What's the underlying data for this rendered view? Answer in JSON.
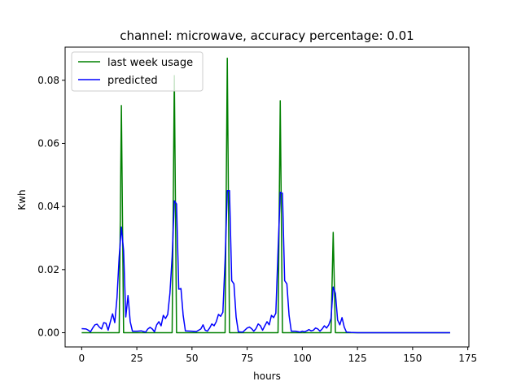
{
  "chart_data": {
    "type": "line",
    "title": "channel: microwave, accuracy percentage: 0.01",
    "xlabel": "hours",
    "ylabel": "Kwh",
    "xlim": [
      -7.5,
      175.5
    ],
    "ylim": [
      -0.0045,
      0.0905
    ],
    "xticks": [
      0,
      25,
      50,
      75,
      100,
      125,
      150,
      175
    ],
    "xtick_labels": [
      "0",
      "25",
      "50",
      "75",
      "100",
      "125",
      "150",
      "175"
    ],
    "yticks": [
      0.0,
      0.02,
      0.04,
      0.06,
      0.08
    ],
    "ytick_labels": [
      "0.00",
      "0.02",
      "0.04",
      "0.06",
      "0.08"
    ],
    "grid": false,
    "legend_position": "upper left",
    "series": [
      {
        "name": "last week usage",
        "color": "#008000",
        "x": [
          0,
          17,
          18,
          19,
          41,
          42,
          43,
          65,
          66,
          67,
          89,
          90,
          91,
          113,
          114,
          115,
          167
        ],
        "y": [
          0,
          0,
          0.072,
          0,
          0,
          0.0815,
          0,
          0,
          0.087,
          0,
          0,
          0.0735,
          0,
          0,
          0.0318,
          0,
          0
        ]
      },
      {
        "name": "predicted",
        "color": "#0000ff",
        "x": [
          0,
          2,
          3,
          4,
          5,
          6,
          7,
          8,
          9,
          10,
          11,
          12,
          13,
          14,
          15,
          16,
          17,
          18,
          19,
          20,
          21,
          22,
          23,
          25,
          27,
          29,
          30,
          31,
          32,
          33,
          34,
          35,
          36,
          37,
          38,
          39,
          40,
          41,
          42,
          43,
          44,
          45,
          46,
          47,
          50,
          52,
          54,
          55,
          56,
          57,
          58,
          59,
          60,
          61,
          62,
          63,
          64,
          65,
          66,
          67,
          68,
          69,
          70,
          71,
          73,
          75,
          76,
          77,
          78,
          79,
          80,
          81,
          82,
          83,
          84,
          85,
          86,
          87,
          88,
          89,
          90,
          91,
          92,
          93,
          94,
          95,
          97,
          99,
          100,
          101,
          102,
          103,
          104,
          105,
          106,
          107,
          108,
          109,
          110,
          111,
          112,
          113,
          114,
          115,
          116,
          117,
          118,
          119,
          120,
          122,
          125,
          167
        ],
        "y": [
          0.0013,
          0.0012,
          0.0008,
          0.0003,
          0.0015,
          0.0025,
          0.0027,
          0.0018,
          0.0012,
          0.0032,
          0.003,
          0.0008,
          0.0035,
          0.006,
          0.0032,
          0.011,
          0.024,
          0.0335,
          0.026,
          0.005,
          0.0118,
          0.0035,
          0.0005,
          0.0005,
          0.0006,
          0.0002,
          0.0012,
          0.0017,
          0.0012,
          0.0003,
          0.0025,
          0.0035,
          0.0022,
          0.0055,
          0.0045,
          0.0058,
          0.0125,
          0.024,
          0.0418,
          0.0408,
          0.0138,
          0.014,
          0.0055,
          0.0006,
          0.0005,
          0.0004,
          0.0012,
          0.0025,
          0.0008,
          0.0005,
          0.0015,
          0.0028,
          0.0022,
          0.0035,
          0.0058,
          0.0052,
          0.0065,
          0.023,
          0.045,
          0.045,
          0.0165,
          0.0155,
          0.005,
          0.0003,
          0.0002,
          0.0015,
          0.0018,
          0.0013,
          0.0005,
          0.0013,
          0.0028,
          0.0022,
          0.0008,
          0.0022,
          0.0035,
          0.0025,
          0.0055,
          0.0048,
          0.0062,
          0.026,
          0.0445,
          0.0442,
          0.0165,
          0.0155,
          0.0055,
          0.0005,
          0.0005,
          0.0002,
          0.0005,
          0.0003,
          0.0006,
          0.001,
          0.0006,
          0.0008,
          0.0015,
          0.0012,
          0.0005,
          0.0012,
          0.0022,
          0.0015,
          0.0025,
          0.0045,
          0.0145,
          0.0125,
          0.004,
          0.0025,
          0.0048,
          0.0018,
          0.0002,
          0.0001,
          0.0,
          0.0
        ]
      }
    ]
  }
}
